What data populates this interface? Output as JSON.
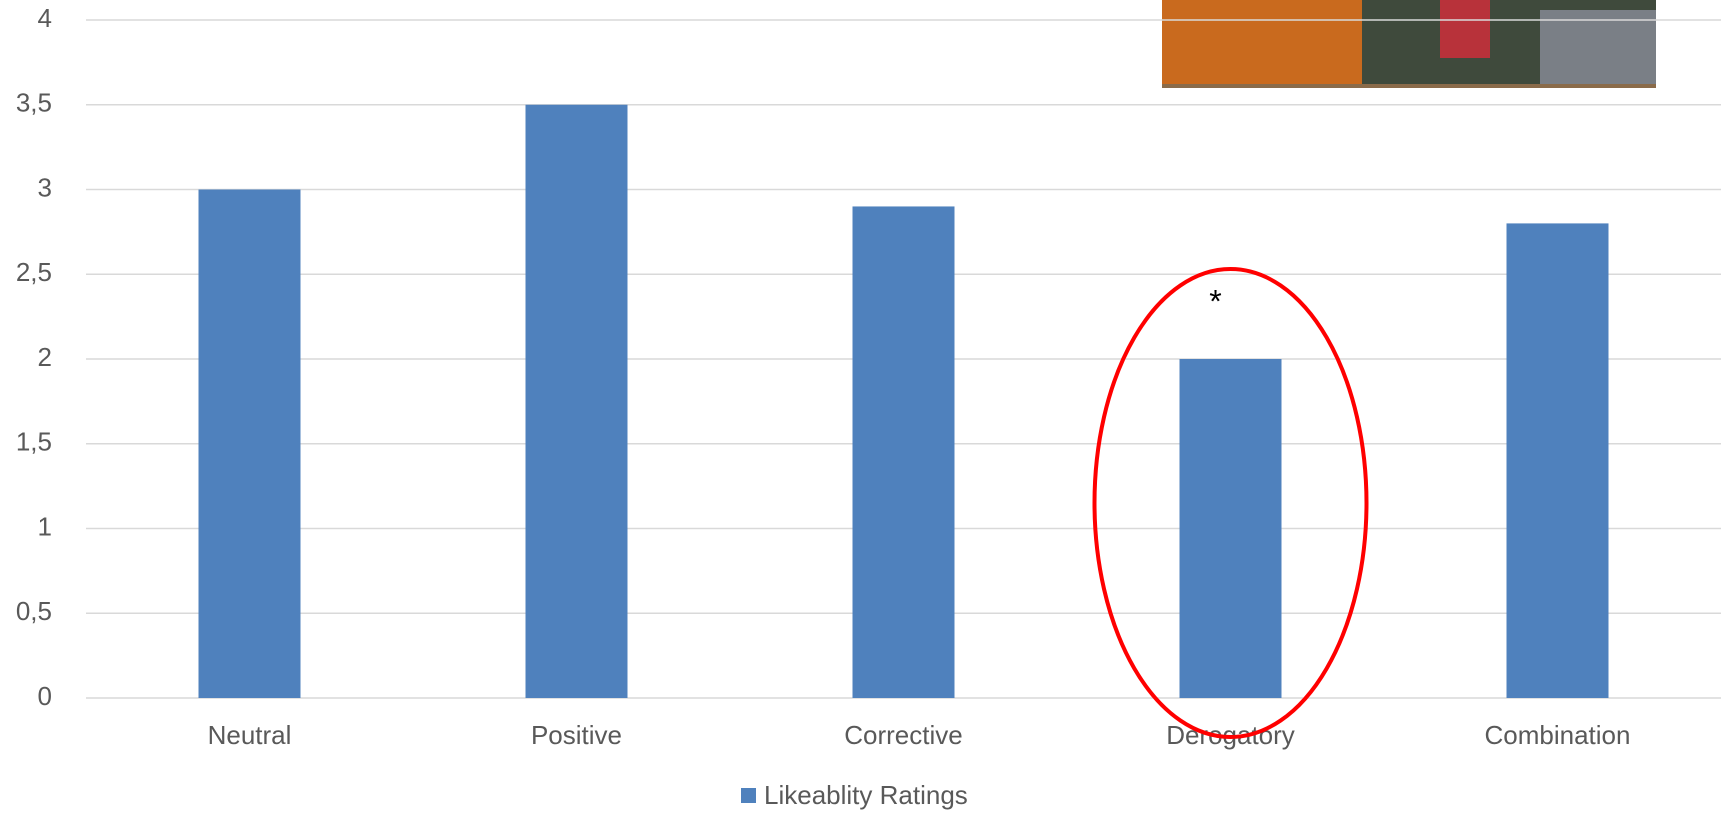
{
  "chart_data": {
    "type": "bar",
    "categories": [
      "Neutral",
      "Positive",
      "Corrective",
      "Derogatory",
      "Combination"
    ],
    "series": [
      {
        "name": "Likeablity Ratings",
        "color": "#4f81bd",
        "values": [
          3,
          3.5,
          2.9,
          2,
          2.8
        ]
      }
    ],
    "ylim": [
      0,
      4
    ],
    "yticks": [
      0,
      {
        "value": 0.5,
        "label": "0,5"
      },
      1,
      {
        "value": 1.5,
        "label": "1,5"
      },
      2,
      {
        "value": 2.5,
        "label": "2,5"
      },
      3,
      {
        "value": 3.5,
        "label": "3,5"
      },
      4
    ],
    "grid": true,
    "legend": "bottom",
    "annotation": "*"
  }
}
